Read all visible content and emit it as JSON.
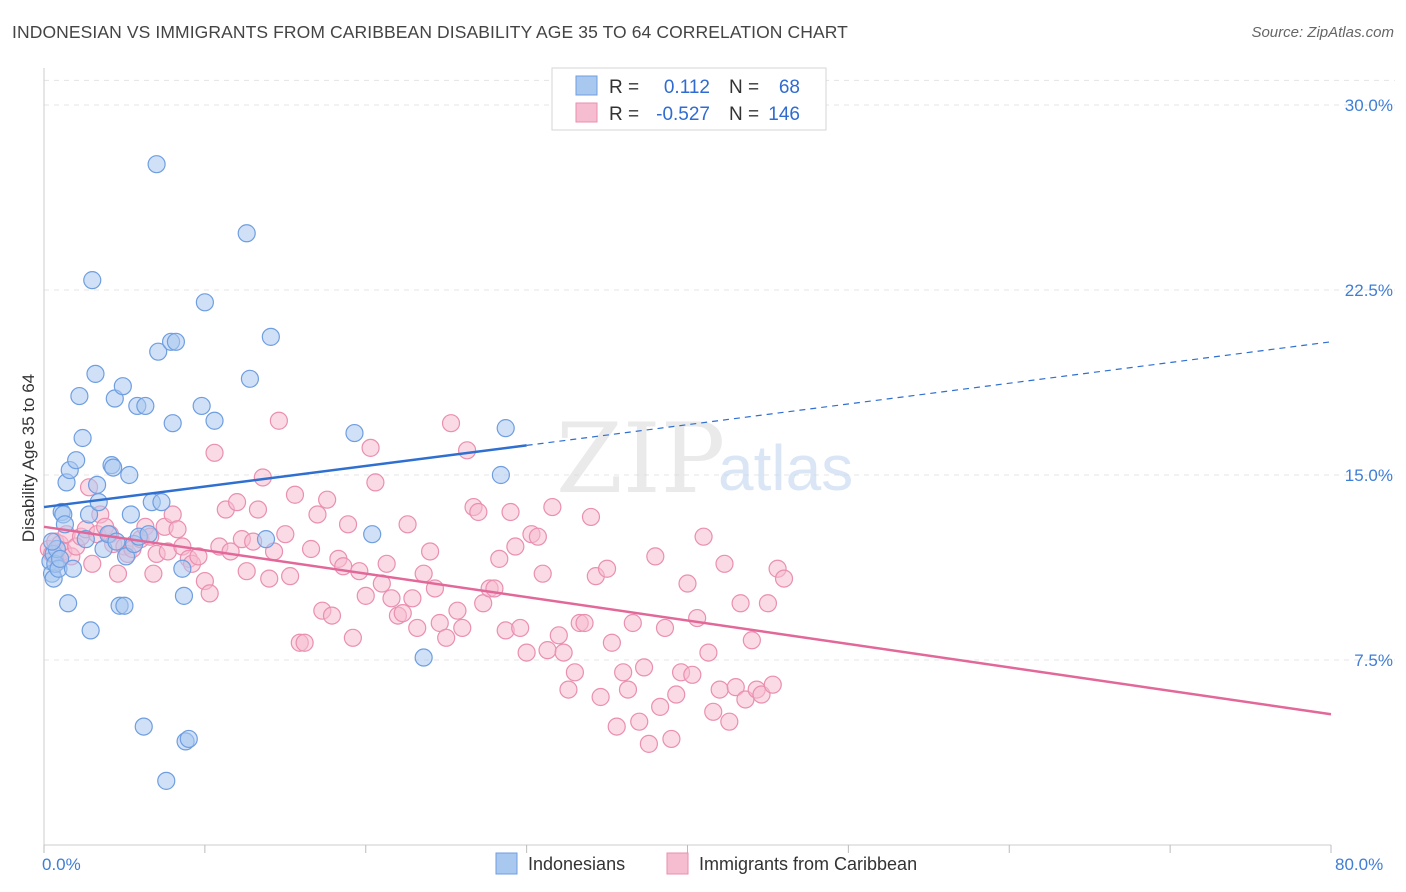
{
  "title": "INDONESIAN VS IMMIGRANTS FROM CARIBBEAN DISABILITY AGE 35 TO 64 CORRELATION CHART",
  "source": "Source: ZipAtlas.com",
  "watermark": {
    "zip": "ZIP",
    "atlas": "atlas"
  },
  "colors": {
    "indonesians_fill": "#a9c8f0",
    "indonesians_stroke": "#6f9ee0",
    "indonesians_line": "#2f6fd0",
    "caribbean_fill": "#f6bcd0",
    "caribbean_stroke": "#ea8fb0",
    "caribbean_line": "#e2689a",
    "grid": "#e4e4e4",
    "tick_text": "#3f7ed6"
  },
  "legend": {
    "rows": [
      {
        "r_label": "R =",
        "r_value": "0.112",
        "n_label": "N =",
        "n_value": "68"
      },
      {
        "r_label": "R =",
        "r_value": "-0.527",
        "n_label": "N =",
        "n_value": "146"
      }
    ]
  },
  "chart_data": {
    "type": "scatter",
    "title": "INDONESIAN VS IMMIGRANTS FROM CARIBBEAN DISABILITY AGE 35 TO 64 CORRELATION CHART",
    "xlabel": "",
    "ylabel": "Disability Age 35 to 64",
    "xlim": [
      0,
      80
    ],
    "ylim": [
      0,
      31.5
    ],
    "x_tick_labels": [
      "0.0%",
      "80.0%"
    ],
    "y_ticks": [
      7.5,
      15.0,
      22.5,
      30.0
    ],
    "y_tick_labels": [
      "7.5%",
      "15.0%",
      "22.5%",
      "30.0%"
    ],
    "grid": true,
    "legend_position": "top-center",
    "series": [
      {
        "name": "Indonesians",
        "r": 0.112,
        "n": 68,
        "trend": {
          "x0": 0,
          "y0": 13.7,
          "x1": 30,
          "y1": 16.2,
          "dash_to_x": 80,
          "dash_to_y": 20.4
        },
        "points": [
          [
            0.4,
            11.5
          ],
          [
            0.5,
            11.0
          ],
          [
            0.6,
            11.8
          ],
          [
            0.6,
            10.8
          ],
          [
            0.7,
            11.4
          ],
          [
            0.8,
            12.0
          ],
          [
            0.9,
            11.2
          ],
          [
            1.0,
            11.6
          ],
          [
            1.1,
            13.5
          ],
          [
            1.2,
            13.4
          ],
          [
            1.3,
            13.0
          ],
          [
            1.4,
            14.7
          ],
          [
            1.5,
            9.8
          ],
          [
            1.6,
            15.2
          ],
          [
            1.8,
            11.2
          ],
          [
            2.0,
            15.6
          ],
          [
            2.2,
            18.2
          ],
          [
            2.4,
            16.5
          ],
          [
            2.6,
            12.4
          ],
          [
            2.8,
            13.4
          ],
          [
            2.9,
            8.7
          ],
          [
            3.0,
            22.9
          ],
          [
            3.2,
            19.1
          ],
          [
            3.3,
            14.6
          ],
          [
            3.4,
            13.9
          ],
          [
            3.7,
            12.0
          ],
          [
            4.0,
            12.6
          ],
          [
            4.2,
            15.4
          ],
          [
            4.3,
            15.3
          ],
          [
            4.4,
            18.1
          ],
          [
            4.5,
            12.3
          ],
          [
            4.7,
            9.7
          ],
          [
            4.9,
            18.6
          ],
          [
            5.0,
            9.7
          ],
          [
            5.1,
            11.7
          ],
          [
            5.3,
            15.0
          ],
          [
            5.4,
            13.4
          ],
          [
            5.6,
            12.2
          ],
          [
            5.8,
            17.8
          ],
          [
            5.9,
            12.5
          ],
          [
            6.2,
            4.8
          ],
          [
            6.3,
            17.8
          ],
          [
            6.5,
            12.6
          ],
          [
            6.7,
            13.9
          ],
          [
            7.0,
            27.6
          ],
          [
            7.1,
            20.0
          ],
          [
            7.3,
            13.9
          ],
          [
            7.6,
            2.6
          ],
          [
            7.9,
            20.4
          ],
          [
            8.0,
            17.1
          ],
          [
            8.2,
            20.4
          ],
          [
            8.6,
            11.2
          ],
          [
            8.7,
            10.1
          ],
          [
            8.8,
            4.2
          ],
          [
            9.0,
            4.3
          ],
          [
            9.8,
            17.8
          ],
          [
            10.0,
            22.0
          ],
          [
            10.6,
            17.2
          ],
          [
            12.6,
            24.8
          ],
          [
            12.8,
            18.9
          ],
          [
            13.8,
            12.4
          ],
          [
            14.1,
            20.6
          ],
          [
            19.3,
            16.7
          ],
          [
            20.4,
            12.6
          ],
          [
            23.6,
            7.6
          ],
          [
            28.4,
            15.0
          ],
          [
            28.7,
            16.9
          ],
          [
            0.5,
            12.3
          ]
        ]
      },
      {
        "name": "Immigrants from Caribbean",
        "r": -0.527,
        "n": 146,
        "trend": {
          "x0": 0,
          "y0": 12.9,
          "x1": 80,
          "y1": 5.3
        },
        "points": [
          [
            0.3,
            12.0
          ],
          [
            0.5,
            11.8
          ],
          [
            0.7,
            12.3
          ],
          [
            0.9,
            11.5
          ],
          [
            1.0,
            12.2
          ],
          [
            1.2,
            11.9
          ],
          [
            1.4,
            12.6
          ],
          [
            1.7,
            11.7
          ],
          [
            2.0,
            12.1
          ],
          [
            2.3,
            12.5
          ],
          [
            2.6,
            12.8
          ],
          [
            2.8,
            14.5
          ],
          [
            3.0,
            11.4
          ],
          [
            3.3,
            12.6
          ],
          [
            3.5,
            13.4
          ],
          [
            3.8,
            12.9
          ],
          [
            4.1,
            12.6
          ],
          [
            4.3,
            12.2
          ],
          [
            4.6,
            11.0
          ],
          [
            5.0,
            12.1
          ],
          [
            5.2,
            11.8
          ],
          [
            5.5,
            12.0
          ],
          [
            6.0,
            12.4
          ],
          [
            6.3,
            12.9
          ],
          [
            6.6,
            12.5
          ],
          [
            6.8,
            11.0
          ],
          [
            7.0,
            11.8
          ],
          [
            7.5,
            12.9
          ],
          [
            7.7,
            11.9
          ],
          [
            8.0,
            13.4
          ],
          [
            8.3,
            12.8
          ],
          [
            8.6,
            12.1
          ],
          [
            9.0,
            11.6
          ],
          [
            9.2,
            11.4
          ],
          [
            9.6,
            11.7
          ],
          [
            10.0,
            10.7
          ],
          [
            10.3,
            10.2
          ],
          [
            10.6,
            15.9
          ],
          [
            10.9,
            12.1
          ],
          [
            11.3,
            13.6
          ],
          [
            11.6,
            11.9
          ],
          [
            12.0,
            13.9
          ],
          [
            12.3,
            12.4
          ],
          [
            12.6,
            11.1
          ],
          [
            13.0,
            12.3
          ],
          [
            13.3,
            13.6
          ],
          [
            13.6,
            14.9
          ],
          [
            14.0,
            10.8
          ],
          [
            14.3,
            11.9
          ],
          [
            14.6,
            17.2
          ],
          [
            15.0,
            12.6
          ],
          [
            15.3,
            10.9
          ],
          [
            15.6,
            14.2
          ],
          [
            15.9,
            8.2
          ],
          [
            16.2,
            8.2
          ],
          [
            16.6,
            12.0
          ],
          [
            17.0,
            13.4
          ],
          [
            17.3,
            9.5
          ],
          [
            17.6,
            14.0
          ],
          [
            17.9,
            9.3
          ],
          [
            18.3,
            11.6
          ],
          [
            18.6,
            11.3
          ],
          [
            18.9,
            13.0
          ],
          [
            19.2,
            8.4
          ],
          [
            19.6,
            11.1
          ],
          [
            20.0,
            10.1
          ],
          [
            20.3,
            16.1
          ],
          [
            20.6,
            14.7
          ],
          [
            21.0,
            10.6
          ],
          [
            21.3,
            11.4
          ],
          [
            21.6,
            10.0
          ],
          [
            22.0,
            9.3
          ],
          [
            22.3,
            9.4
          ],
          [
            22.6,
            13.0
          ],
          [
            22.9,
            10.0
          ],
          [
            23.2,
            8.8
          ],
          [
            23.6,
            11.0
          ],
          [
            24.0,
            11.9
          ],
          [
            24.3,
            10.4
          ],
          [
            24.6,
            9.0
          ],
          [
            25.0,
            8.4
          ],
          [
            25.3,
            17.1
          ],
          [
            25.7,
            9.5
          ],
          [
            26.0,
            8.8
          ],
          [
            26.3,
            16.0
          ],
          [
            26.7,
            13.7
          ],
          [
            27.0,
            13.5
          ],
          [
            27.3,
            9.8
          ],
          [
            27.7,
            10.4
          ],
          [
            28.0,
            10.4
          ],
          [
            28.3,
            11.6
          ],
          [
            28.7,
            8.7
          ],
          [
            29.0,
            13.5
          ],
          [
            29.3,
            12.1
          ],
          [
            29.6,
            8.8
          ],
          [
            30.0,
            7.8
          ],
          [
            30.3,
            12.6
          ],
          [
            30.7,
            12.5
          ],
          [
            31.0,
            11.0
          ],
          [
            31.3,
            7.9
          ],
          [
            31.6,
            13.7
          ],
          [
            32.0,
            8.5
          ],
          [
            32.3,
            7.8
          ],
          [
            32.6,
            6.3
          ],
          [
            33.0,
            7.0
          ],
          [
            33.3,
            9.0
          ],
          [
            33.6,
            9.0
          ],
          [
            34.0,
            13.3
          ],
          [
            34.3,
            10.9
          ],
          [
            34.6,
            6.0
          ],
          [
            35.0,
            11.2
          ],
          [
            35.3,
            8.2
          ],
          [
            35.6,
            4.8
          ],
          [
            36.0,
            7.0
          ],
          [
            36.3,
            6.3
          ],
          [
            36.6,
            9.0
          ],
          [
            37.0,
            5.0
          ],
          [
            37.3,
            7.2
          ],
          [
            37.6,
            4.1
          ],
          [
            38.0,
            11.7
          ],
          [
            38.3,
            5.6
          ],
          [
            38.6,
            8.8
          ],
          [
            39.0,
            4.3
          ],
          [
            39.3,
            6.1
          ],
          [
            39.6,
            7.0
          ],
          [
            40.0,
            10.6
          ],
          [
            40.3,
            6.9
          ],
          [
            40.6,
            9.2
          ],
          [
            41.0,
            12.5
          ],
          [
            41.3,
            7.8
          ],
          [
            41.6,
            5.4
          ],
          [
            42.0,
            6.3
          ],
          [
            42.3,
            11.4
          ],
          [
            42.6,
            5.0
          ],
          [
            43.0,
            6.4
          ],
          [
            43.3,
            9.8
          ],
          [
            43.6,
            5.9
          ],
          [
            44.0,
            8.3
          ],
          [
            44.3,
            6.3
          ],
          [
            44.6,
            6.1
          ],
          [
            45.0,
            9.8
          ],
          [
            45.3,
            6.5
          ],
          [
            45.6,
            11.2
          ],
          [
            46.0,
            10.8
          ]
        ]
      }
    ]
  }
}
